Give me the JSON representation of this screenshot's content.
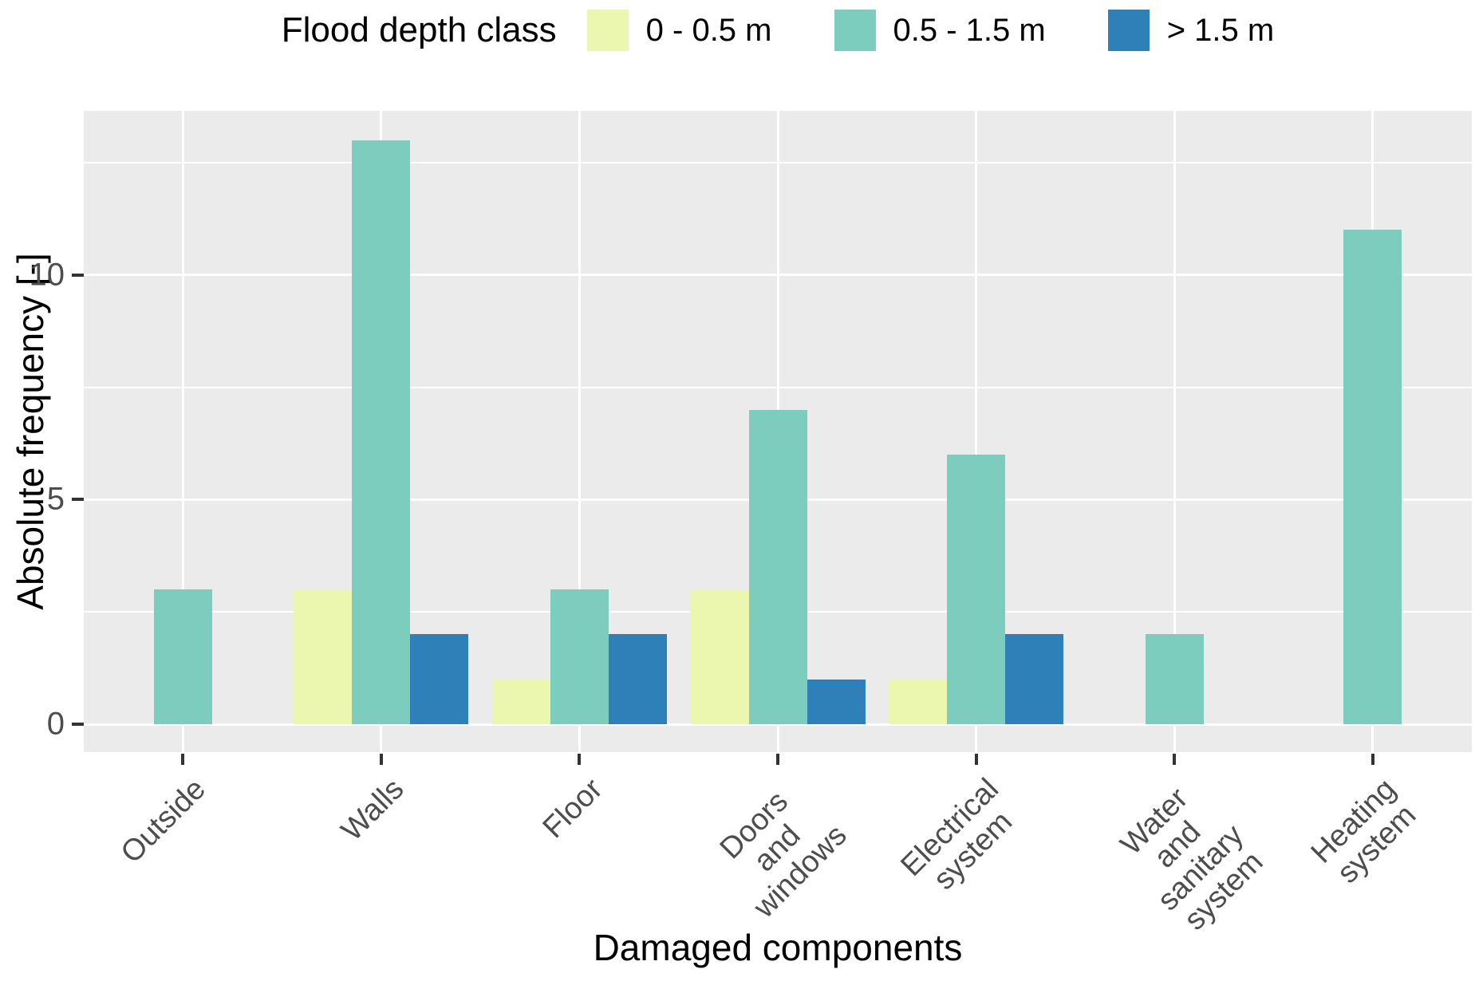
{
  "legend": {
    "title": "Flood depth class",
    "items": [
      {
        "label": "0 - 0.5 m",
        "color": "#EBF7AF"
      },
      {
        "label": "0.5 - 1.5 m",
        "color": "#7CCDBE"
      },
      {
        "label": "> 1.5 m",
        "color": "#2E80B9"
      }
    ]
  },
  "axes": {
    "x_title": "Damaged components",
    "y_title": "Absolute frequency [-]",
    "y_tick_labels": [
      "0",
      "5",
      "10"
    ]
  },
  "chart_data": {
    "type": "bar",
    "title": "",
    "xlabel": "Damaged components",
    "ylabel": "Absolute frequency [-]",
    "legend_title": "Flood depth class",
    "legend_position": "top",
    "grid": true,
    "ylim": [
      0,
      13.65
    ],
    "y_major_ticks": [
      0,
      5,
      10
    ],
    "y_minor_ticks": [
      2.5,
      7.5,
      12.5
    ],
    "categories": [
      "Outside",
      "Walls",
      "Floor",
      "Doors and\nwindows",
      "Electrical\nsystem",
      "Water and\nsanitary\nsystem",
      "Heating\nsystem"
    ],
    "series": [
      {
        "name": "0 - 0.5 m",
        "color": "#EBF7AF",
        "values": [
          null,
          3,
          1,
          3,
          1,
          null,
          null
        ]
      },
      {
        "name": "0.5 - 1.5 m",
        "color": "#7CCDBE",
        "values": [
          3,
          13,
          3,
          7,
          6,
          2,
          11
        ]
      },
      {
        "name": "> 1.5 m",
        "color": "#2E80B9",
        "values": [
          null,
          2,
          2,
          1,
          2,
          null,
          null
        ]
      }
    ]
  },
  "style": {
    "panel_background": "#EBEBEB",
    "grid_color": "#FFFFFF",
    "tick_color": "#333333",
    "tick_label_color": "#4D4D4D"
  }
}
